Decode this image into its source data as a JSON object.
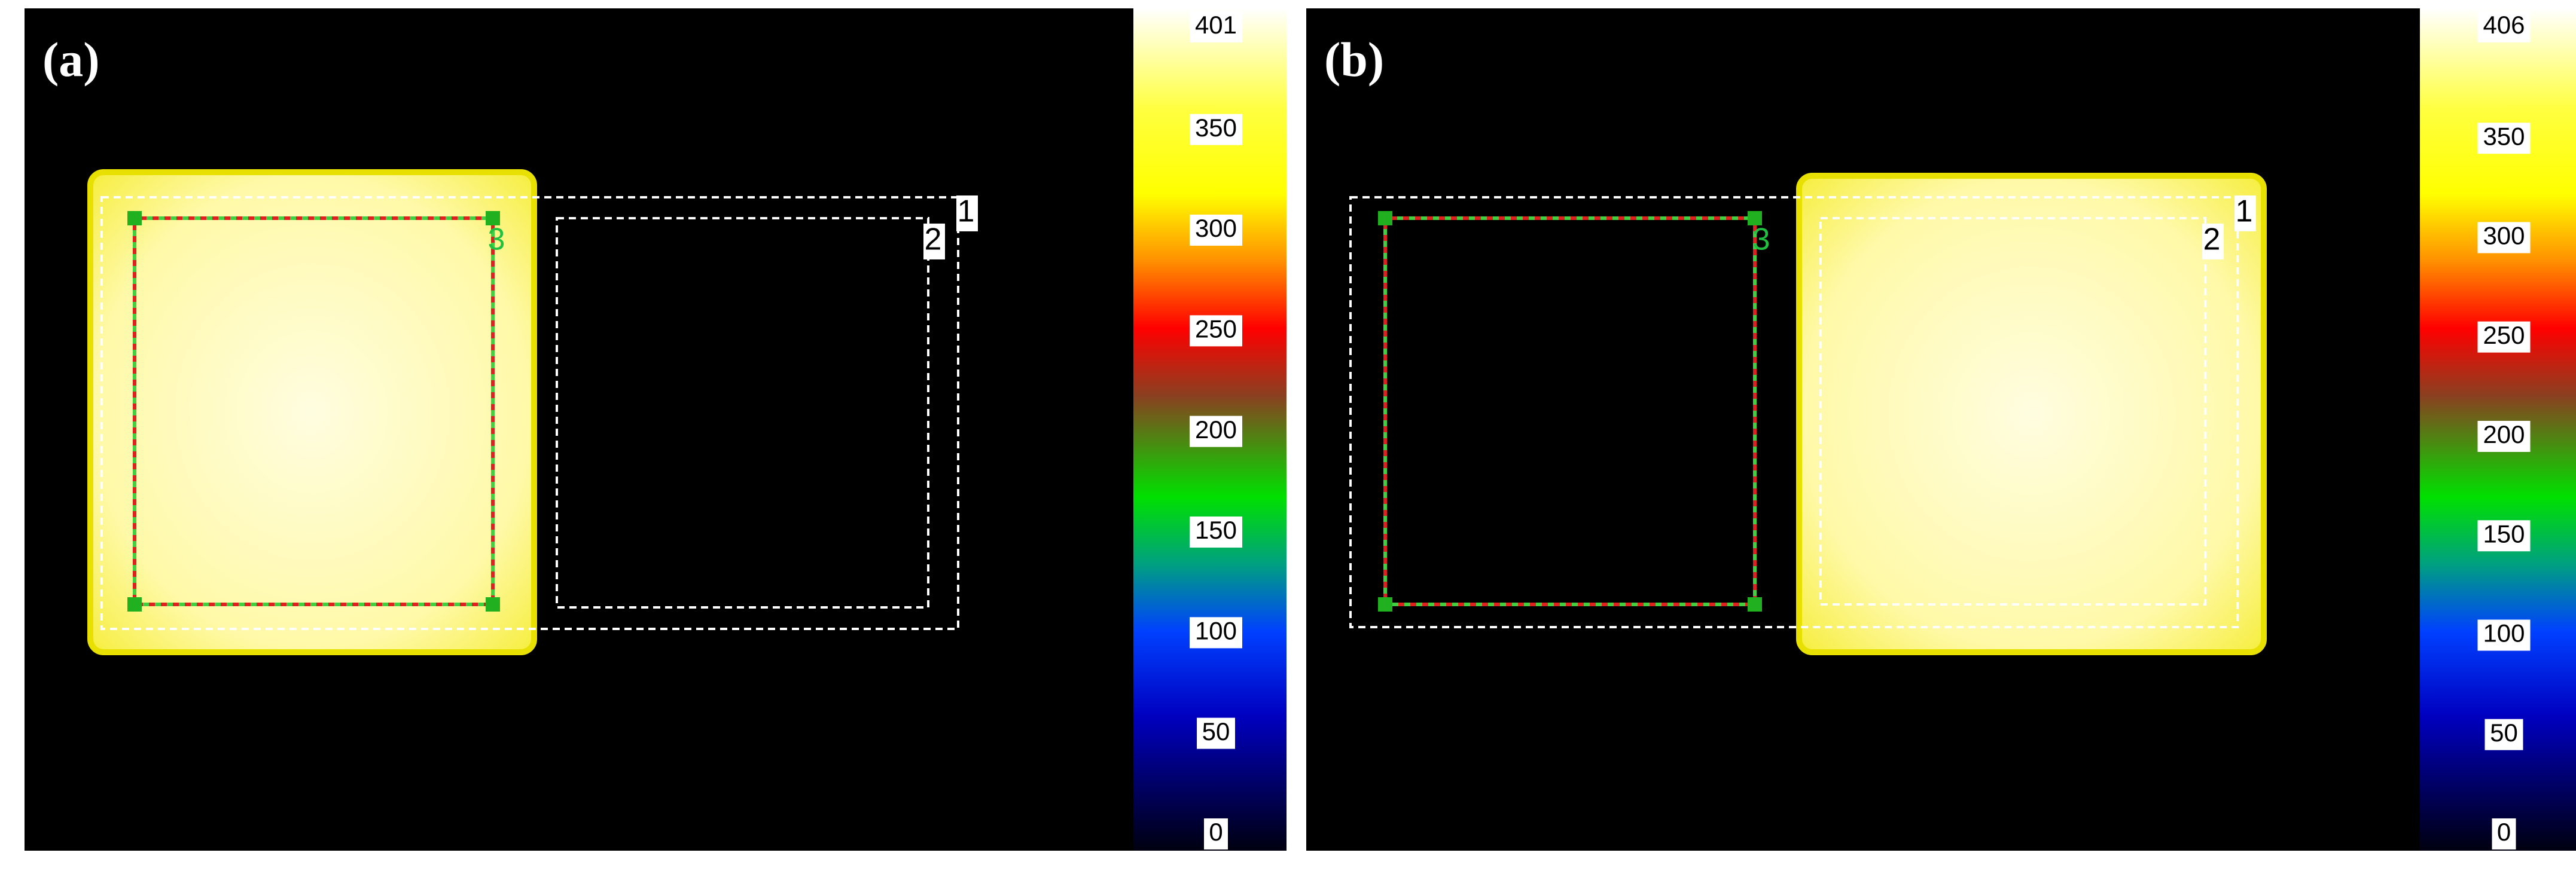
{
  "panels": [
    {
      "label": "(a)",
      "roi_labels": [
        "1",
        "2",
        "3"
      ],
      "colorbar": {
        "ticks": [
          401,
          350,
          300,
          250,
          200,
          150,
          100,
          50,
          0
        ]
      }
    },
    {
      "label": "(b)",
      "roi_labels": [
        "1",
        "2",
        "3"
      ],
      "colorbar": {
        "ticks": [
          406,
          350,
          300,
          250,
          200,
          150,
          100,
          50,
          0
        ]
      }
    }
  ]
}
